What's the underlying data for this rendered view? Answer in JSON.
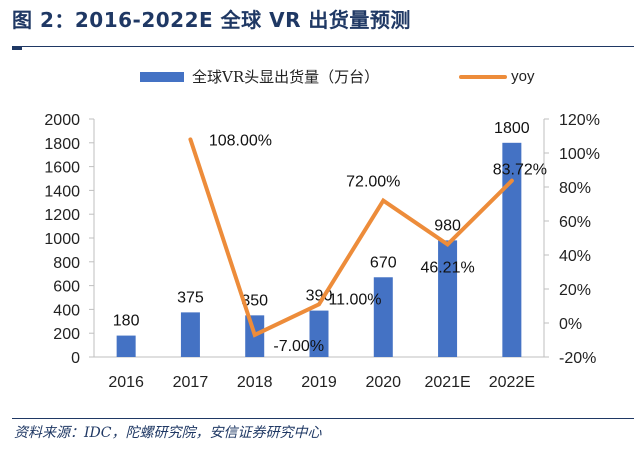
{
  "figure": {
    "title": "图 2：2016-2022E 全球 VR 出货量预测",
    "source": "资料来源：IDC，陀螺研究院，安信证券研究中心"
  },
  "chart_data": {
    "type": "bar",
    "title": "2016-2022E 全球 VR 出货量预测",
    "categories": [
      "2016",
      "2017",
      "2018",
      "2019",
      "2020",
      "2021E",
      "2022E"
    ],
    "series": [
      {
        "name": "全球VR头显出货量（万台）",
        "type": "bar",
        "axis": "left",
        "color": "#4472c4",
        "values": [
          180,
          375,
          350,
          390,
          670,
          980,
          1800
        ],
        "labels": [
          "180",
          "375",
          "350",
          "390",
          "670",
          "980",
          "1800"
        ]
      },
      {
        "name": "yoy",
        "type": "line",
        "axis": "right",
        "color": "#ed8c3a",
        "values": [
          null,
          108.0,
          -7.0,
          11.0,
          72.0,
          46.21,
          83.72
        ],
        "labels": [
          "",
          "108.00%",
          "-7.00%",
          "11.00%",
          "72.00%",
          "46.21%",
          "83.72%"
        ]
      }
    ],
    "y_left": {
      "range": [
        0,
        2000
      ],
      "ticks": [
        "0",
        "200",
        "400",
        "600",
        "800",
        "1000",
        "1200",
        "1400",
        "1600",
        "1800",
        "2000"
      ]
    },
    "y_right": {
      "range": [
        -20,
        120
      ],
      "unit": "%",
      "ticks": [
        "-20%",
        "0%",
        "20%",
        "40%",
        "60%",
        "80%",
        "100%",
        "120%"
      ]
    },
    "grid": false,
    "legend_position": "top"
  }
}
